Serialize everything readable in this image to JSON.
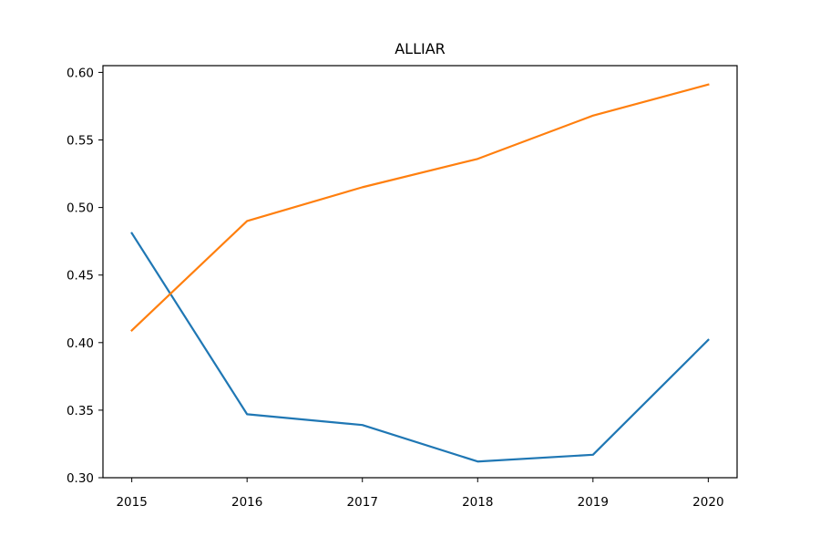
{
  "chart_data": {
    "type": "line",
    "title": "ALLIAR",
    "xlabel": "",
    "ylabel": "",
    "x": [
      "2015",
      "2016",
      "2017",
      "2018",
      "2019",
      "2020"
    ],
    "xlim": [
      2014.75,
      2020.25
    ],
    "ylim": [
      0.3,
      0.605
    ],
    "yticks": [
      "0.30",
      "0.35",
      "0.40",
      "0.45",
      "0.50",
      "0.55",
      "0.60"
    ],
    "grid": false,
    "series": [
      {
        "color": "#1f77b4",
        "values": [
          0.481,
          0.347,
          0.339,
          0.312,
          0.317,
          0.402
        ]
      },
      {
        "color": "#ff7f0e",
        "values": [
          0.409,
          0.49,
          0.515,
          0.536,
          0.568,
          0.591
        ]
      }
    ]
  }
}
